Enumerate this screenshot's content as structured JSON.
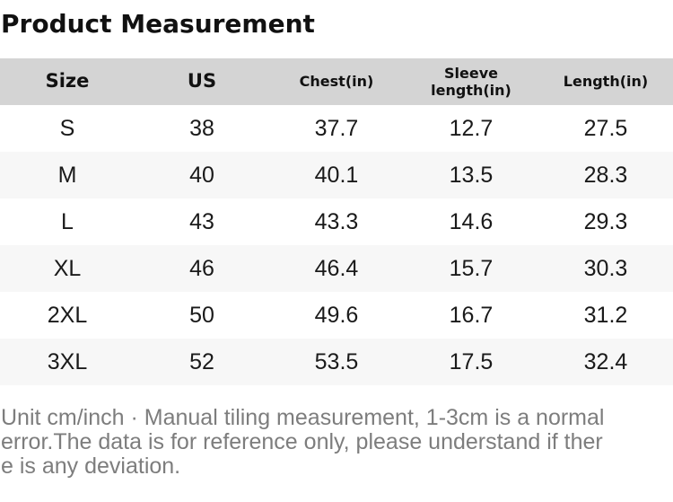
{
  "page": {
    "title": "Product Measurement"
  },
  "table": {
    "columns": [
      "Size",
      "US",
      "Chest(in)",
      "Sleeve length(in)",
      "Length(in)"
    ],
    "rows": [
      [
        "S",
        "38",
        "37.7",
        "12.7",
        "27.5"
      ],
      [
        "M",
        "40",
        "40.1",
        "13.5",
        "28.3"
      ],
      [
        "L",
        "43",
        "43.3",
        "14.6",
        "29.3"
      ],
      [
        "XL",
        "46",
        "46.4",
        "15.7",
        "30.3"
      ],
      [
        "2XL",
        "50",
        "49.6",
        "16.7",
        "31.2"
      ],
      [
        "3XL",
        "52",
        "53.5",
        "17.5",
        "32.4"
      ]
    ]
  },
  "footer": {
    "lines": [
      "Unit cm/inch · Manual tiling measurement, 1-3cm is a normal",
      "error.The data is for reference only, please understand if ther",
      "e is any deviation."
    ],
    "full_text": "Unit cm/inch · Manual tiling measurement, 1-3cm is a normal error.The data is for reference only, please understand if there is any deviation."
  },
  "colors": {
    "header_bg": "#d4d4d4",
    "row_alt_bg": "#f7f7f7",
    "text": "#1a1a1a",
    "footer_text": "#7d7d7d"
  },
  "chart_data": {
    "type": "table",
    "title": "Product Measurement",
    "columns": [
      "Size",
      "US",
      "Chest(in)",
      "Sleeve length(in)",
      "Length(in)"
    ],
    "rows": [
      [
        "S",
        38,
        37.7,
        12.7,
        27.5
      ],
      [
        "M",
        40,
        40.1,
        13.5,
        28.3
      ],
      [
        "L",
        43,
        43.3,
        14.6,
        29.3
      ],
      [
        "XL",
        46,
        46.4,
        15.7,
        30.3
      ],
      [
        "2XL",
        50,
        49.6,
        16.7,
        31.2
      ],
      [
        "3XL",
        52,
        53.5,
        17.5,
        32.4
      ]
    ],
    "note": "Unit cm/inch · Manual tiling measurement, 1-3cm is a normal error.The data is for reference only, please understand if there is any deviation.",
    "layout": {
      "header_background": "#d4d4d4",
      "zebra_stripes": true,
      "grid": false
    }
  }
}
